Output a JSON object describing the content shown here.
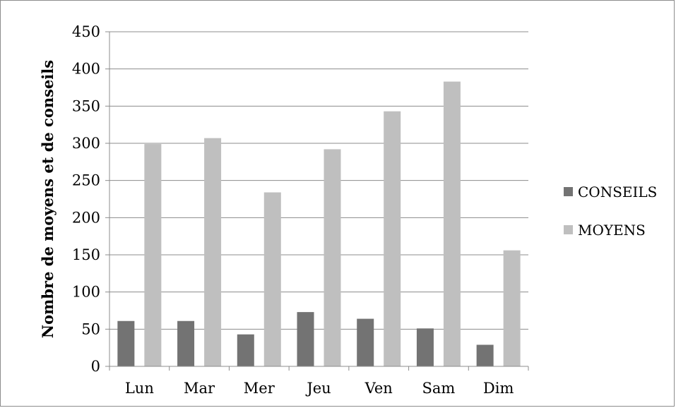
{
  "chart_data": {
    "type": "bar",
    "title": "",
    "xlabel": "",
    "ylabel": "Nombre de moyens et de conseils",
    "categories": [
      "Lun",
      "Mar",
      "Mer",
      "Jeu",
      "Ven",
      "Sam",
      "Dim"
    ],
    "series": [
      {
        "name": "CONSEILS",
        "color": "#737373",
        "values": [
          61,
          61,
          43,
          73,
          64,
          51,
          29
        ]
      },
      {
        "name": "MOYENS",
        "color": "#bfbfbf",
        "values": [
          299,
          307,
          234,
          292,
          343,
          383,
          156
        ]
      }
    ],
    "ylim": [
      0,
      450
    ],
    "yticks": [
      0,
      50,
      100,
      150,
      200,
      250,
      300,
      350,
      400,
      450
    ],
    "grid": true,
    "legend_position": "right"
  }
}
